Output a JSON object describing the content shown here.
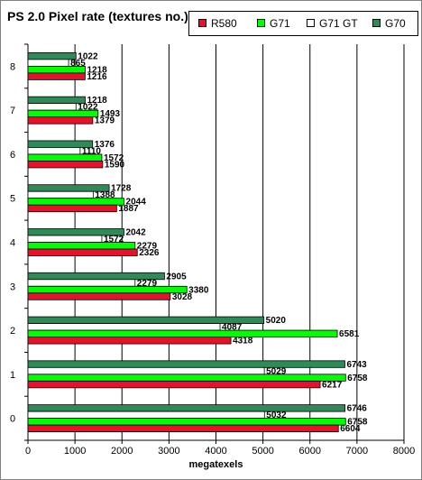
{
  "chart_data": {
    "type": "bar",
    "orientation": "horizontal",
    "title": "PS 2.0 Pixel rate (textures no.)",
    "xlabel": "megatexels",
    "ylabel": "",
    "xlim": [
      0,
      8000
    ],
    "xticks": [
      "0",
      "1000",
      "2000",
      "3000",
      "4000",
      "5000",
      "6000",
      "7000",
      "8000"
    ],
    "categories": [
      "0",
      "1",
      "2",
      "3",
      "4",
      "5",
      "6",
      "7",
      "8"
    ],
    "grid": true,
    "legend_position": "top-right",
    "series": [
      {
        "name": "R580",
        "color": "#e8102a",
        "values": [
          6604,
          6217,
          4318,
          3028,
          2326,
          1887,
          1590,
          1379,
          1216
        ]
      },
      {
        "name": "G71",
        "color": "#00ff00",
        "values": [
          6758,
          6758,
          6581,
          3380,
          2279,
          2044,
          1572,
          1493,
          1218
        ]
      },
      {
        "name": "G71 GT",
        "color": "#ffffff",
        "values": [
          5032,
          5029,
          4087,
          2279,
          1572,
          1388,
          1110,
          1022,
          865
        ]
      },
      {
        "name": "G70",
        "color": "#2e8b57",
        "values": [
          6746,
          6743,
          5020,
          2905,
          2042,
          1728,
          1376,
          1218,
          1022
        ]
      }
    ]
  }
}
